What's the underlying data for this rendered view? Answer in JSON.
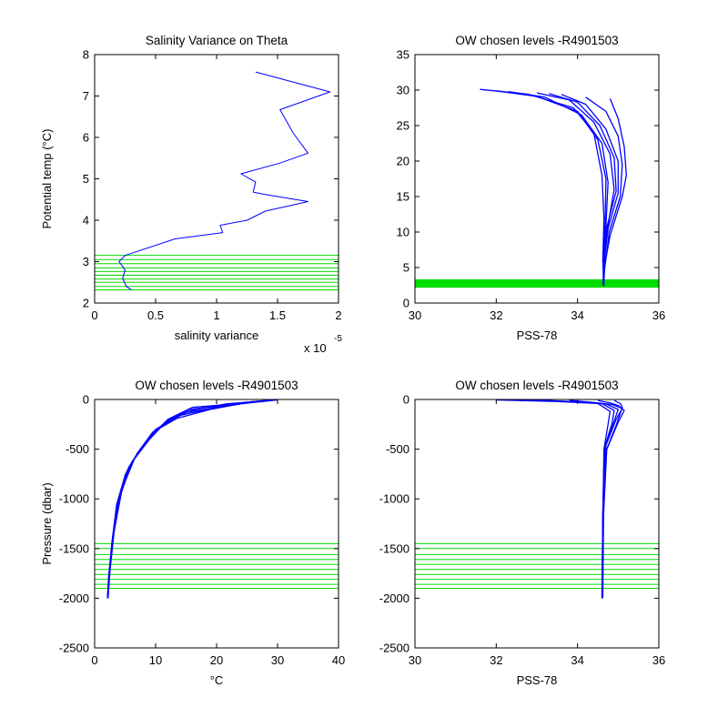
{
  "chart_data": [
    {
      "type": "line",
      "title": "Salinity Variance on Theta",
      "xlabel": "salinity variance",
      "ylabel": "Potential temp (°C)",
      "x_exponent": "x 10",
      "x_exponent_power": "-5",
      "xlim": [
        0,
        2
      ],
      "ylim": [
        2,
        8
      ],
      "xticks": [
        0,
        0.5,
        1,
        1.5,
        2
      ],
      "xtick_labels": [
        "0",
        "0.5",
        "1",
        "1.5",
        "2"
      ],
      "yticks": [
        2,
        3,
        4,
        5,
        6,
        7,
        8
      ],
      "ytick_labels": [
        "2",
        "3",
        "4",
        "5",
        "6",
        "7",
        "8"
      ],
      "series_color": "#0000ff",
      "chosen_color": "#00dd00",
      "series": [
        {
          "x": [
            0.3,
            0.26,
            0.23,
            0.25,
            0.2,
            0.25,
            0.66,
            1.05,
            1.03,
            1.25,
            1.4,
            1.75,
            1.4,
            1.3,
            1.32,
            1.2,
            1.52,
            1.75,
            1.63,
            1.52,
            1.93,
            1.32
          ],
          "y": [
            2.32,
            2.4,
            2.6,
            2.8,
            3.0,
            3.15,
            3.55,
            3.7,
            3.88,
            4.0,
            4.22,
            4.45,
            4.62,
            4.68,
            4.92,
            5.12,
            5.38,
            5.62,
            6.1,
            6.67,
            7.1,
            7.58
          ]
        }
      ],
      "chosen_levels": [
        2.32,
        2.4,
        2.5,
        2.58,
        2.67,
        2.76,
        2.85,
        2.95,
        3.05,
        3.15
      ]
    },
    {
      "type": "line",
      "title": "OW chosen levels -R4901503",
      "xlabel": "PSS-78",
      "ylabel": "",
      "xlim": [
        30,
        36
      ],
      "ylim": [
        0,
        35
      ],
      "xticks": [
        30,
        32,
        34,
        36
      ],
      "xtick_labels": [
        "30",
        "32",
        "34",
        "36"
      ],
      "yticks": [
        0,
        5,
        10,
        15,
        20,
        25,
        30,
        35
      ],
      "ytick_labels": [
        "0",
        "5",
        "10",
        "15",
        "20",
        "25",
        "30",
        "35"
      ],
      "series_color": "#0000ff",
      "chosen_color": "#00dd00",
      "series": [
        {
          "x": [
            31.6,
            32.8,
            33.9,
            34.4,
            34.6,
            34.65,
            34.62,
            34.65
          ],
          "y": [
            30.1,
            29.4,
            27.5,
            24.0,
            18.0,
            12.0,
            6.0,
            2.4
          ]
        },
        {
          "x": [
            32.3,
            33.2,
            34.1,
            34.6,
            34.75,
            34.7,
            34.66,
            34.64
          ],
          "y": [
            29.8,
            29.0,
            26.5,
            22.5,
            17.0,
            11.0,
            5.0,
            2.6
          ]
        },
        {
          "x": [
            33.0,
            33.8,
            34.4,
            34.8,
            34.9,
            34.72,
            34.64,
            34.63
          ],
          "y": [
            29.6,
            28.6,
            25.5,
            21.0,
            16.0,
            10.0,
            5.0,
            2.5
          ]
        },
        {
          "x": [
            33.6,
            34.2,
            34.7,
            35.0,
            35.0,
            34.75,
            34.65,
            34.64
          ],
          "y": [
            29.4,
            28.0,
            24.5,
            20.0,
            15.5,
            10.5,
            5.5,
            2.7
          ]
        },
        {
          "x": [
            34.2,
            34.7,
            35.0,
            35.1,
            35.05,
            34.78,
            34.67,
            34.64
          ],
          "y": [
            29.0,
            27.0,
            23.5,
            19.5,
            15.0,
            10.0,
            5.0,
            2.4
          ]
        },
        {
          "x": [
            34.8,
            35.0,
            35.15,
            35.2,
            35.1,
            34.8,
            34.66,
            34.63
          ],
          "y": [
            28.8,
            26.0,
            22.0,
            18.0,
            15.0,
            9.5,
            5.0,
            2.6
          ]
        },
        {
          "x": [
            32.0,
            33.0,
            34.0,
            34.5,
            34.7,
            34.68,
            34.63,
            34.64
          ],
          "y": [
            29.9,
            29.1,
            27.0,
            23.0,
            17.5,
            11.5,
            5.5,
            2.5
          ]
        },
        {
          "x": [
            33.3,
            34.0,
            34.55,
            34.9,
            34.95,
            34.7,
            34.64,
            34.63
          ],
          "y": [
            29.5,
            28.3,
            25.0,
            20.5,
            15.8,
            10.2,
            5.2,
            2.6
          ]
        }
      ],
      "chosen_levels": [
        2.3,
        2.45,
        2.6,
        2.75,
        2.9,
        3.05,
        3.2
      ]
    },
    {
      "type": "line",
      "title": "OW chosen levels -R4901503",
      "xlabel": "°C",
      "ylabel": "Pressure (dbar)",
      "xlim": [
        0,
        40
      ],
      "ylim": [
        -2500,
        0
      ],
      "xticks": [
        0,
        10,
        20,
        30,
        40
      ],
      "xtick_labels": [
        "0",
        "10",
        "20",
        "30",
        "40"
      ],
      "yticks": [
        -2500,
        -2000,
        -1500,
        -1000,
        -500,
        0
      ],
      "ytick_labels": [
        "-2500",
        "-2000",
        "-1500",
        "-1000",
        "-500",
        "0"
      ],
      "series_color": "#0000ff",
      "chosen_color": "#00dd00",
      "series": [
        {
          "x": [
            30.0,
            24.0,
            16.0,
            12.0,
            9.0,
            6.5,
            4.5,
            3.2,
            2.5,
            2.2
          ],
          "y": [
            -5,
            -40,
            -80,
            -200,
            -400,
            -600,
            -900,
            -1300,
            -1700,
            -2000
          ]
        },
        {
          "x": [
            29.0,
            23.0,
            15.5,
            11.5,
            8.5,
            6.0,
            4.3,
            3.1,
            2.4,
            2.2
          ],
          "y": [
            -10,
            -50,
            -100,
            -230,
            -420,
            -640,
            -950,
            -1350,
            -1750,
            -2000
          ]
        },
        {
          "x": [
            28.0,
            22.0,
            15.0,
            11.0,
            8.0,
            5.6,
            4.0,
            3.0,
            2.4,
            2.1
          ],
          "y": [
            -10,
            -60,
            -130,
            -260,
            -460,
            -680,
            -980,
            -1380,
            -1760,
            -2000
          ]
        },
        {
          "x": [
            27.0,
            20.0,
            14.0,
            10.0,
            7.5,
            5.3,
            3.8,
            2.9,
            2.3,
            2.1
          ],
          "y": [
            -15,
            -80,
            -160,
            -300,
            -500,
            -720,
            -1020,
            -1420,
            -1780,
            -2000
          ]
        },
        {
          "x": [
            26.0,
            19.0,
            13.5,
            9.5,
            7.0,
            5.0,
            3.6,
            2.8,
            2.3,
            2.1
          ],
          "y": [
            -20,
            -100,
            -190,
            -330,
            -540,
            -760,
            -1060,
            -1450,
            -1800,
            -2000
          ]
        },
        {
          "x": [
            28.5,
            21.5,
            15.8,
            11.8,
            8.8,
            6.2,
            4.4,
            3.2,
            2.5,
            2.2
          ],
          "y": [
            -8,
            -45,
            -110,
            -220,
            -410,
            -620,
            -930,
            -1330,
            -1730,
            -2000
          ]
        }
      ],
      "chosen_levels": [
        -1450,
        -1500,
        -1560,
        -1610,
        -1660,
        -1710,
        -1760,
        -1810,
        -1860,
        -1900
      ]
    },
    {
      "type": "line",
      "title": "OW chosen levels -R4901503",
      "xlabel": "PSS-78",
      "ylabel": "",
      "xlim": [
        30,
        36
      ],
      "ylim": [
        -2500,
        0
      ],
      "xticks": [
        30,
        32,
        34,
        36
      ],
      "xtick_labels": [
        "30",
        "32",
        "34",
        "36"
      ],
      "yticks": [
        -2500,
        -2000,
        -1500,
        -1000,
        -500,
        0
      ],
      "ytick_labels": [
        "-2500",
        "-2000",
        "-1500",
        "-1000",
        "-500",
        "0"
      ],
      "series_color": "#0000ff",
      "chosen_color": "#00dd00",
      "series": [
        {
          "x": [
            32.0,
            33.5,
            34.5,
            34.8,
            34.75,
            34.65,
            34.62,
            34.6
          ],
          "y": [
            -5,
            -20,
            -40,
            -120,
            -250,
            -500,
            -1200,
            -2000
          ]
        },
        {
          "x": [
            33.0,
            34.0,
            34.7,
            35.0,
            34.9,
            34.68,
            34.62,
            34.61
          ],
          "y": [
            -5,
            -25,
            -45,
            -100,
            -220,
            -480,
            -1150,
            -2000
          ]
        },
        {
          "x": [
            33.8,
            34.4,
            34.85,
            35.1,
            34.95,
            34.7,
            34.63,
            34.61
          ],
          "y": [
            -8,
            -30,
            -50,
            -90,
            -200,
            -460,
            -1100,
            -2000
          ]
        },
        {
          "x": [
            34.5,
            34.8,
            35.0,
            35.15,
            35.0,
            34.72,
            34.64,
            34.62
          ],
          "y": [
            -10,
            -35,
            -60,
            -110,
            -230,
            -500,
            -1150,
            -2000
          ]
        },
        {
          "x": [
            34.9,
            35.05,
            35.1,
            35.05,
            34.95,
            34.7,
            34.63,
            34.61
          ],
          "y": [
            -10,
            -40,
            -80,
            -140,
            -260,
            -520,
            -1200,
            -2000
          ]
        },
        {
          "x": [
            32.6,
            33.9,
            34.6,
            34.9,
            34.85,
            34.66,
            34.62,
            34.6
          ],
          "y": [
            -6,
            -22,
            -42,
            -110,
            -240,
            -490,
            -1180,
            -2000
          ]
        }
      ],
      "chosen_levels": [
        -1450,
        -1500,
        -1560,
        -1610,
        -1660,
        -1710,
        -1760,
        -1810,
        -1860,
        -1900
      ]
    }
  ]
}
